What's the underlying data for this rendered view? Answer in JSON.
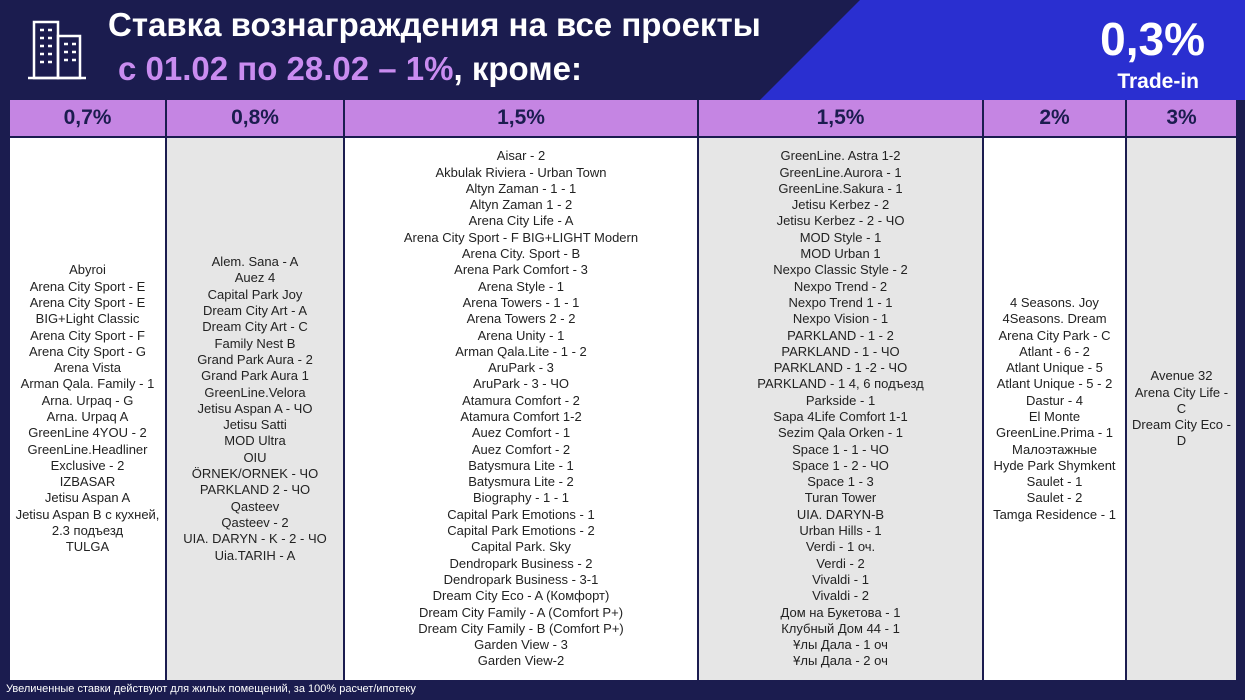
{
  "header": {
    "title_line1": "Ставка вознаграждения на все проекты",
    "title_line2_highlight": "с 01.02 по 28.02 – 1%",
    "title_line2_rest": ", кроме:",
    "badge_value": "0,3%",
    "badge_label": "Trade-in"
  },
  "table": {
    "columns": [
      {
        "header": "0,7%",
        "items": [
          "Abyroi",
          "Arena City Sport - E",
          "Arena City Sport - E BIG+Light Classic",
          "Arena City Sport - F",
          "Arena City Sport - G",
          "Arena Vista",
          "Arman Qala. Family - 1",
          "Arna. Urpaq - G",
          "Arna. Urpaq A",
          "GreenLine 4YOU - 2",
          "GreenLine.Headliner Exclusive - 2",
          "IZBASAR",
          "Jetisu Aspan A",
          "Jetisu Aspan B с кухней, 2.3 подъезд",
          "TULGA"
        ]
      },
      {
        "header": "0,8%",
        "items": [
          "Alem. Sana - A",
          "Auez 4",
          "Capital Park Joy",
          "Dream City Art - A",
          "Dream City Art - C",
          "Family Nest B",
          "Grand Park Aura - 2",
          "Grand Park Aura 1",
          "GreenLine.Velora",
          "Jetisu Aspan A - ЧО",
          "Jetisu Satti",
          "MOD Ultra",
          "OIU",
          "ÖRNEK/ORNEK - ЧО",
          "PARKLAND 2 - ЧО",
          "Qasteev",
          "Qasteev - 2",
          "UIA. DARYN - K - 2 - ЧО",
          "Uia.TARIH - A"
        ]
      },
      {
        "header": "1,5%",
        "items": [
          "Aisar - 2",
          "Akbulak Riviera - Urban Town",
          "Altyn Zaman - 1 - 1",
          "Altyn Zaman 1 - 2",
          "Arena City Life - A",
          "Arena City Sport - F BIG+LIGHT Modern",
          "Arena City. Sport - B",
          "Arena Park Comfort - 3",
          "Arena Style - 1",
          "Arena Towers - 1 - 1",
          "Arena Towers 2 - 2",
          "Arena Unity - 1",
          "Arman Qala.Lite - 1 - 2",
          "AruPark - 3",
          "AruPark - 3 - ЧО",
          "Atamura Comfort - 2",
          "Atamura Comfort 1-2",
          "Auez Comfort - 1",
          "Auez Comfort - 2",
          "Batysmura Lite - 1",
          "Batysmura Lite - 2",
          "Biography - 1 - 1",
          "Capital Park Emotions - 1",
          "Capital Park Emotions - 2",
          "Capital Park. Sky",
          "Dendropark Business - 2",
          "Dendropark Business - 3-1",
          "Dream City Eco - A (Комфорт)",
          "Dream City Family - A (Comfort P+)",
          "Dream City Family - B (Comfort P+)",
          "Garden View - 3",
          "Garden View-2"
        ]
      },
      {
        "header": "1,5%",
        "items": [
          "GreenLine. Astra 1-2",
          "GreenLine.Aurora - 1",
          "GreenLine.Sakura - 1",
          "Jetisu Kerbez - 2",
          "Jetisu Kerbez - 2 - ЧО",
          "MOD Style - 1",
          "MOD Urban 1",
          "Nexpo Classic Style - 2",
          "Nexpo Trend - 2",
          "Nexpo Trend 1 - 1",
          "Nexpo Vision - 1",
          "PARKLAND - 1 - 2",
          "PARKLAND - 1 - ЧО",
          "PARKLAND - 1 -2 - ЧО",
          "PARKLAND - 1 4, 6 подъезд",
          "Parkside - 1",
          "Sapa 4Life Comfort 1-1",
          "Sezim Qala Orken - 1",
          "Space 1 - 1 - ЧО",
          "Space 1 - 2 - ЧО",
          "Space 1 - 3",
          "Turan Tower",
          "UIA. DARYN-B",
          "Urban Hills - 1",
          "Verdi - 1 оч.",
          "Verdi - 2",
          "Vivaldi - 1",
          "Vivaldi - 2",
          "Дом на Букетова - 1",
          "Клубный Дом 44 - 1",
          "Ұлы Дала - 1 оч",
          "Ұлы Дала - 2 оч"
        ]
      },
      {
        "header": "2%",
        "items": [
          "4 Seasons. Joy",
          "4Seasons. Dream",
          "Arena City Park - C",
          "Atlant - 6 - 2",
          "Atlant Unique - 5",
          "Atlant Unique - 5 - 2",
          "Dastur - 4",
          "El Monte",
          "GreenLine.Prima - 1",
          "Малоэтажные",
          "Hyde Park Shymkent",
          "Saulet - 1",
          "Saulet - 2",
          "Tamga Residence - 1"
        ]
      },
      {
        "header": "3%",
        "items": [
          "Avenue 32",
          "Arena City Life - C",
          "Dream City Eco - D"
        ]
      }
    ]
  },
  "footnote": "Увеличенные ставки действуют для жилых помещений, за 100% расчет/ипотеку"
}
